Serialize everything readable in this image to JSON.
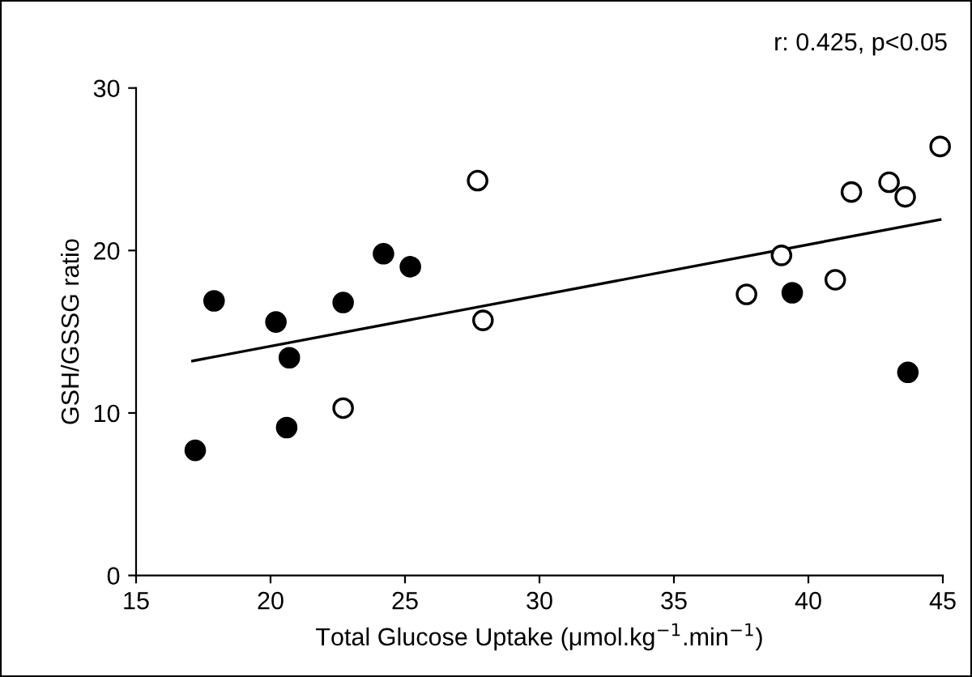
{
  "chart_data": {
    "type": "scatter",
    "xlabel": "Total Glucose Uptake (μmol.kg$^{−1}$.min$^{−1}$)",
    "ylabel": "GSH/GSSG ratio",
    "annotations": [
      "r: 0.425, p<0.05"
    ],
    "xlim": [
      15,
      45
    ],
    "xticks": [
      15,
      20,
      25,
      30,
      35,
      40,
      45
    ],
    "ylim": [
      0,
      30
    ],
    "yticks": [
      0,
      10,
      20,
      30
    ],
    "grid": false,
    "legend": false,
    "series": [
      {
        "marker": "circle",
        "color": "#000000",
        "x": [
          17.2,
          17.9,
          20.2,
          20.7,
          20.6,
          22.7,
          24.2,
          25.2,
          39.4,
          43.7
        ],
        "values": [
          7.7,
          16.9,
          15.6,
          13.4,
          9.1,
          16.8,
          19.8,
          19.0,
          17.4,
          12.5
        ]
      },
      {
        "marker": "circle",
        "color": "#ffffff",
        "x": [
          22.7,
          27.7,
          27.9,
          37.7,
          39.0,
          41.0,
          41.6,
          43.0,
          43.6,
          44.9
        ],
        "values": [
          10.3,
          24.3,
          15.7,
          17.3,
          19.7,
          18.2,
          23.6,
          24.2,
          23.3,
          26.4
        ]
      },
      {
        "type": "line",
        "marker": "none",
        "color": "#000000",
        "x": [
          17.1,
          44.9
        ],
        "values": [
          13.2,
          21.9
        ]
      }
    ]
  }
}
